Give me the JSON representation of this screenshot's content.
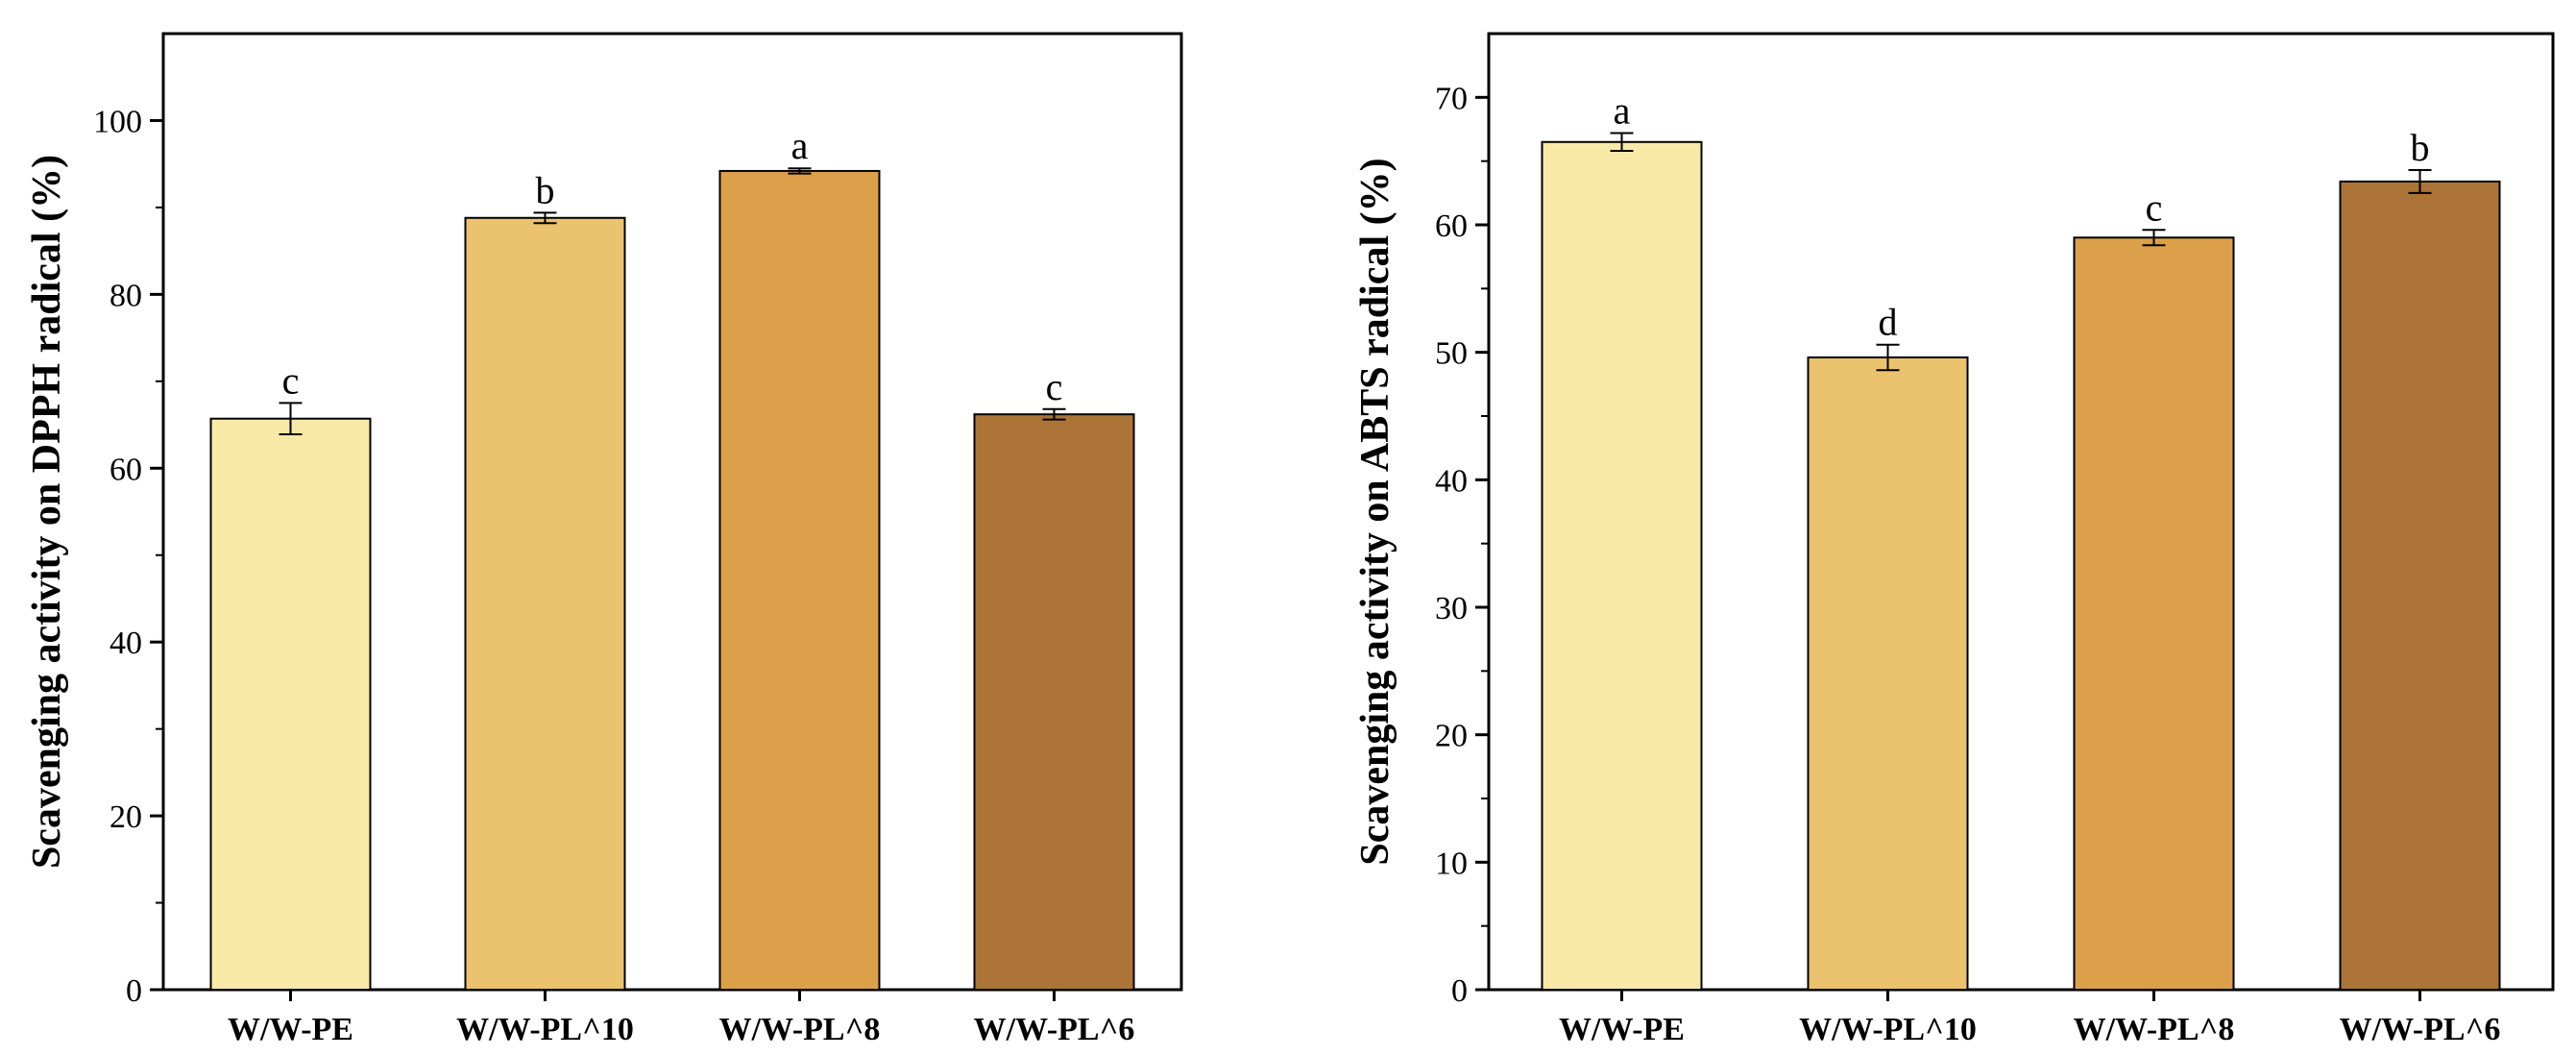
{
  "chart_data": [
    {
      "type": "bar",
      "title": "",
      "xlabel": "",
      "ylabel": "Scavenging activity on DPPH radical (%)",
      "categories": [
        "W/W-PE",
        "W/W-PL^10",
        "W/W-PL^8",
        "W/W-PL^6"
      ],
      "values": [
        65.7,
        88.8,
        94.2,
        66.2
      ],
      "errors": [
        1.8,
        0.6,
        0.3,
        0.6
      ],
      "significance": [
        "c",
        "b",
        "a",
        "c"
      ],
      "colors": [
        "#F8EAA6",
        "#EBC36E",
        "#DCA04A",
        "#AD7438"
      ],
      "ylim": [
        0,
        110
      ],
      "yticks": [
        0,
        20,
        40,
        60,
        80,
        100
      ],
      "grid": false,
      "legend": "none"
    },
    {
      "type": "bar",
      "title": "",
      "xlabel": "",
      "ylabel": "Scavenging activity on ABTS radical (%)",
      "categories": [
        "W/W-PE",
        "W/W-PL^10",
        "W/W-PL^8",
        "W/W-PL^6"
      ],
      "values": [
        66.5,
        49.6,
        59.0,
        63.4
      ],
      "errors": [
        0.7,
        1.0,
        0.6,
        0.9
      ],
      "significance": [
        "a",
        "d",
        "c",
        "b"
      ],
      "colors": [
        "#F8EAA6",
        "#EBC36E",
        "#DCA04A",
        "#AD7438"
      ],
      "ylim": [
        0,
        75
      ],
      "yticks": [
        0,
        10,
        20,
        30,
        40,
        50,
        60,
        70
      ],
      "grid": false,
      "legend": "none"
    }
  ]
}
